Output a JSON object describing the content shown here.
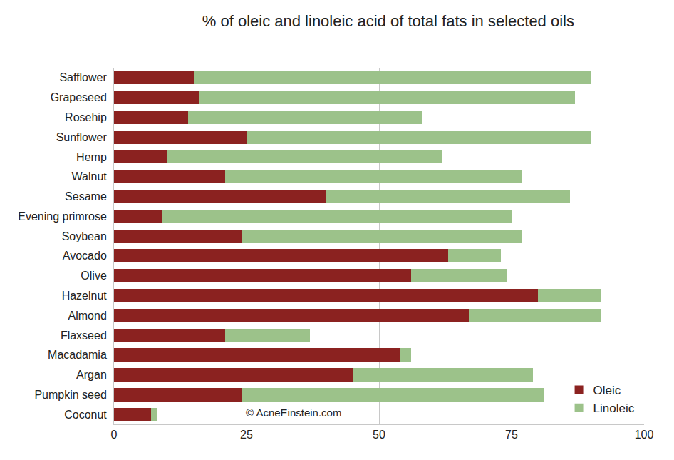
{
  "chart_data": {
    "type": "bar",
    "orientation": "horizontal",
    "stacked": true,
    "title": "% of oleic and linoleic acid of total fats in selected oils",
    "annotations": [
      "© AcneEinstein.com"
    ],
    "categories": [
      "Safflower",
      "Grapeseed",
      "Rosehip",
      "Sunflower",
      "Hemp",
      "Walnut",
      "Sesame",
      "Evening primrose",
      "Soybean",
      "Avocado",
      "Olive",
      "Hazelnut",
      "Almond",
      "Flaxseed",
      "Macadamia",
      "Argan",
      "Pumpkin seed",
      "Coconut"
    ],
    "series": [
      {
        "name": "Oleic",
        "color": "#8b2220",
        "values": [
          15,
          16,
          14,
          25,
          10,
          21,
          40,
          9,
          24,
          63,
          56,
          80,
          67,
          21,
          54,
          45,
          24,
          7
        ]
      },
      {
        "name": "Linoleic",
        "color": "#9cc28a",
        "values": [
          75,
          71,
          44,
          65,
          52,
          56,
          46,
          66,
          53,
          10,
          18,
          12,
          25,
          16,
          2,
          34,
          57,
          1
        ]
      }
    ],
    "xlim": [
      0,
      100
    ],
    "xticks": [
      0,
      25,
      50,
      75,
      100
    ],
    "grid": true,
    "legend": "bottom right"
  }
}
